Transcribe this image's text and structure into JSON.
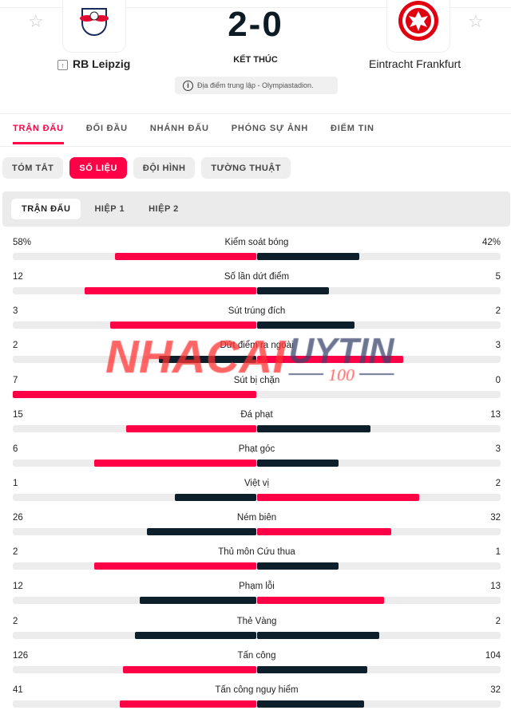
{
  "match": {
    "home": "RB Leipzig",
    "away": "Eintracht Frankfurt",
    "score": "2-0",
    "status": "KẾT THÚC",
    "venue": "Địa điểm trung lập - Olympiastadion."
  },
  "tabs": [
    "TRẬN ĐẤU",
    "ĐỐI ĐẦU",
    "NHÁNH ĐẤU",
    "PHÓNG SỰ ẢNH",
    "ĐIỂM TIN"
  ],
  "chips": [
    "TÓM TẮT",
    "SỐ LIỆU",
    "ĐỘI HÌNH",
    "TƯỜNG THUẬT"
  ],
  "periods": [
    "TRẬN ĐẤU",
    "HIỆP 1",
    "HIỆP 2"
  ],
  "colors": {
    "accent": "#ff0046",
    "dark": "#0d1f2a"
  },
  "watermark": "NHACAIUYTIN 100",
  "stats": [
    {
      "label": "Kiểm soát bóng",
      "home": "58%",
      "away": "42%",
      "h": 58,
      "a": 42
    },
    {
      "label": "Số lần dứt điểm",
      "home": "12",
      "away": "5",
      "h": 12,
      "a": 5
    },
    {
      "label": "Sút trúng đích",
      "home": "3",
      "away": "2",
      "h": 3,
      "a": 2
    },
    {
      "label": "Dứt điểm ra ngoài",
      "home": "2",
      "away": "3",
      "h": 2,
      "a": 3
    },
    {
      "label": "Sút bị chặn",
      "home": "7",
      "away": "0",
      "h": 7,
      "a": 0
    },
    {
      "label": "Đá phạt",
      "home": "15",
      "away": "13",
      "h": 15,
      "a": 13
    },
    {
      "label": "Phạt góc",
      "home": "6",
      "away": "3",
      "h": 6,
      "a": 3
    },
    {
      "label": "Việt vị",
      "home": "1",
      "away": "2",
      "h": 1,
      "a": 2
    },
    {
      "label": "Ném biên",
      "home": "26",
      "away": "32",
      "h": 26,
      "a": 32
    },
    {
      "label": "Thủ môn Cứu thua",
      "home": "2",
      "away": "1",
      "h": 2,
      "a": 1
    },
    {
      "label": "Phạm lỗi",
      "home": "12",
      "away": "13",
      "h": 12,
      "a": 13
    },
    {
      "label": "Thẻ Vàng",
      "home": "2",
      "away": "2",
      "h": 2,
      "a": 2
    },
    {
      "label": "Tấn công",
      "home": "126",
      "away": "104",
      "h": 126,
      "a": 104
    },
    {
      "label": "Tấn công nguy hiểm",
      "home": "41",
      "away": "32",
      "h": 41,
      "a": 32
    }
  ]
}
